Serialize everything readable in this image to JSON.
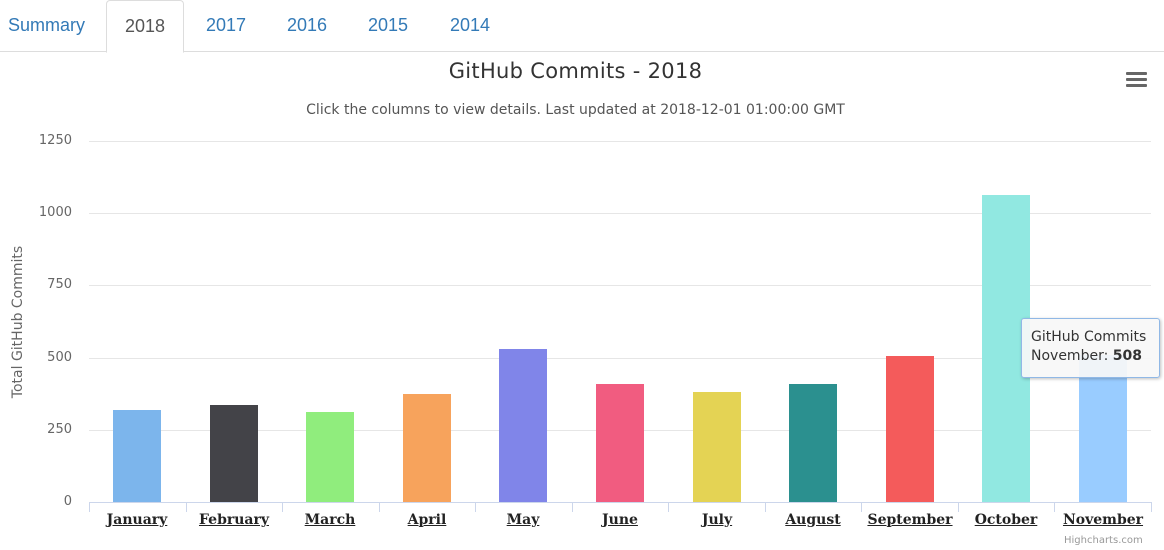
{
  "tabs": [
    {
      "label": "Summary",
      "active": false
    },
    {
      "label": "2018",
      "active": true
    },
    {
      "label": "2017",
      "active": false
    },
    {
      "label": "2016",
      "active": false
    },
    {
      "label": "2015",
      "active": false
    },
    {
      "label": "2014",
      "active": false
    }
  ],
  "menu": {
    "icon": "hamburger-menu-icon"
  },
  "tooltip": {
    "series": "GitHub Commits",
    "category": "November",
    "value": "508"
  },
  "credit": "Highcharts.com",
  "chart_data": {
    "type": "bar",
    "title": "GitHub Commits - 2018",
    "subtitle": "Click the columns to view details. Last updated at 2018-12-01 01:00:00 GMT",
    "xlabel": "",
    "ylabel": "Total GitHub Commits",
    "ylim": [
      0,
      1250
    ],
    "yticks": [
      "0",
      "250",
      "500",
      "750",
      "1000",
      "1250"
    ],
    "grid": true,
    "categories": [
      "January",
      "February",
      "March",
      "April",
      "May",
      "June",
      "July",
      "August",
      "September",
      "October",
      "November"
    ],
    "series": [
      {
        "values": [
          317,
          335,
          313,
          374,
          530,
          409,
          382,
          408,
          505,
          1064,
          508
        ]
      }
    ],
    "colors": [
      "#7cb5ec",
      "#434348",
      "#90ed7d",
      "#f7a35c",
      "#8085e9",
      "#f15c80",
      "#e4d354",
      "#2b908f",
      "#f45b5b",
      "#91e8e1",
      "#99ccff"
    ]
  }
}
